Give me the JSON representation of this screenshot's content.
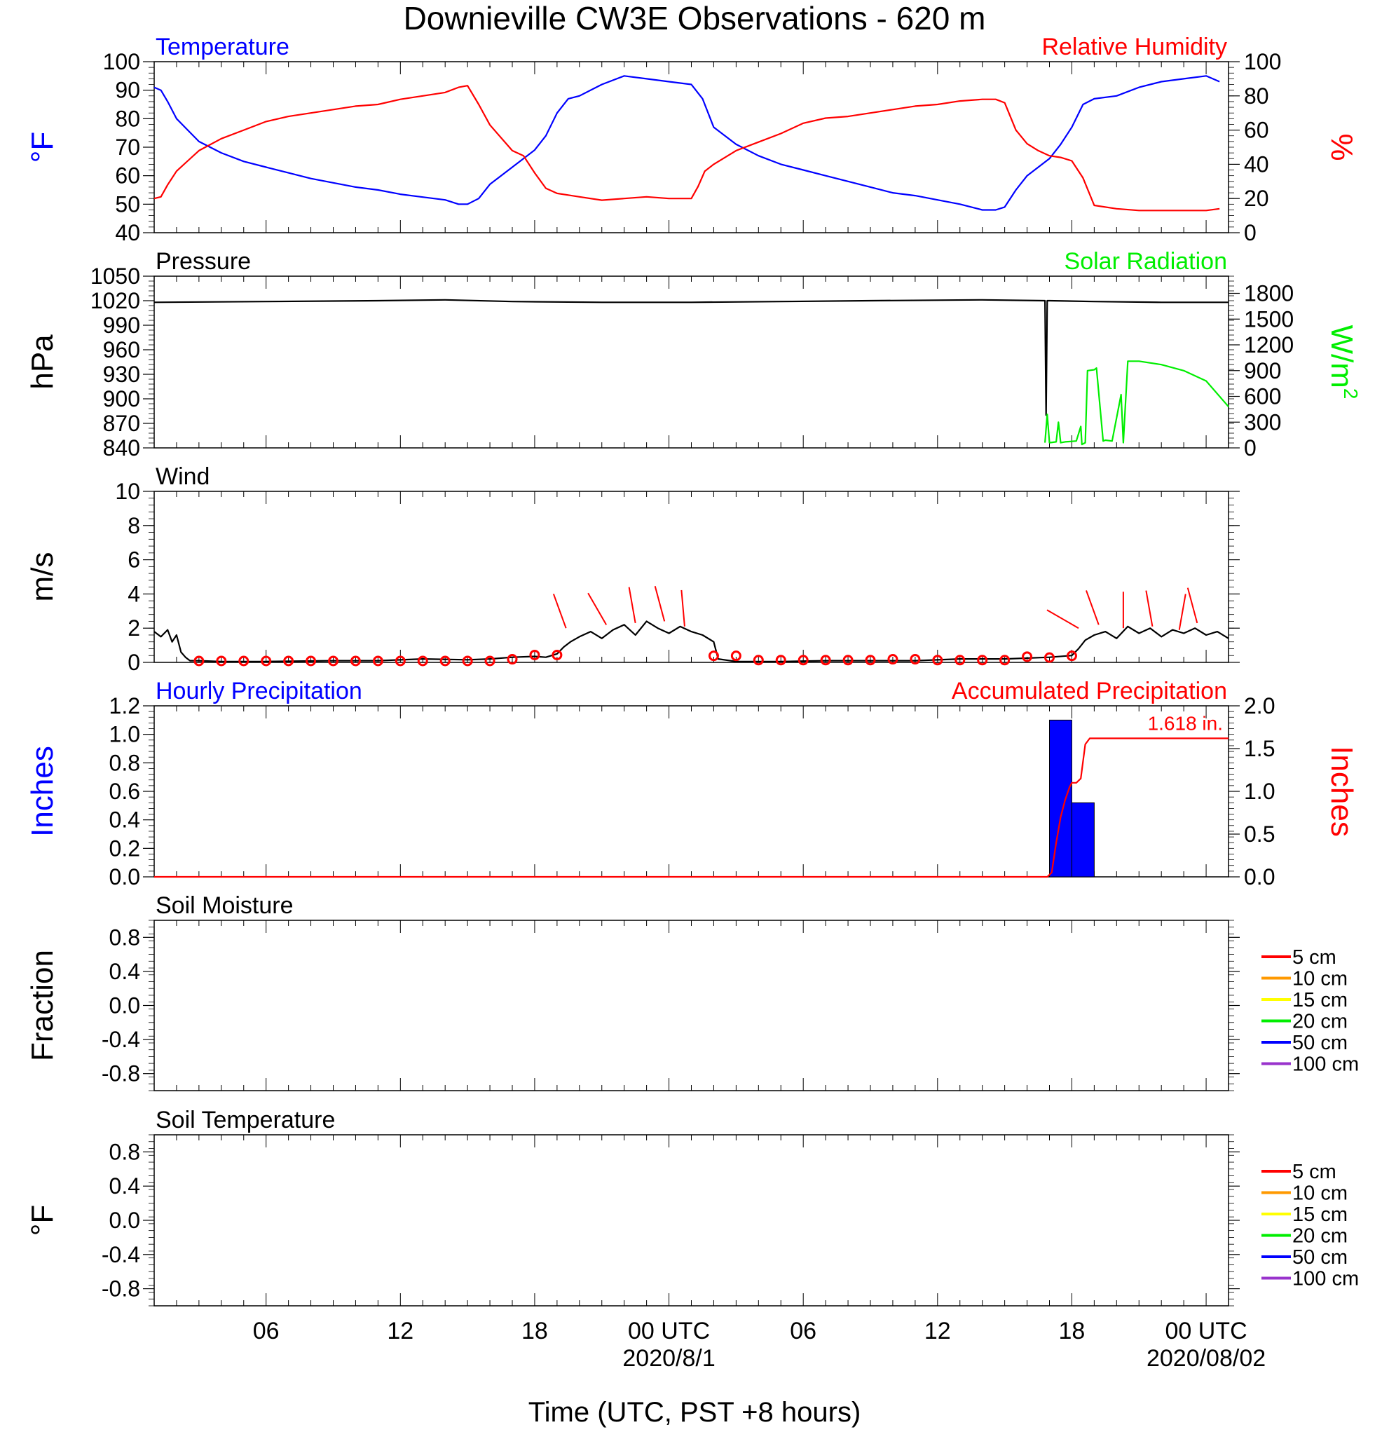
{
  "title": "Downieville CW3E Observations - 620 m",
  "colors": {
    "temperature": "#0000ff",
    "humidity": "#ff0000",
    "pressure": "#000000",
    "solar": "#00ee00",
    "wind": "#000000",
    "wind_barb": "#ff0000",
    "hourly_precip": "#0000ff",
    "accum_precip": "#ff0000",
    "soil_5cm": "#ff0000",
    "soil_10cm": "#ff9900",
    "soil_15cm": "#ffff00",
    "soil_20cm": "#00ee00",
    "soil_50cm": "#0000ff",
    "soil_100cm": "#9933cc"
  },
  "x_axis": {
    "label": "Time (UTC, PST +8 hours)",
    "range_hours": [
      0,
      48
    ],
    "ticks": [
      {
        "hour": 5,
        "label": "06"
      },
      {
        "hour": 11,
        "label": "12"
      },
      {
        "hour": 17,
        "label": "18"
      },
      {
        "hour": 23,
        "label": "00 UTC"
      },
      {
        "hour": 29,
        "label": "06"
      },
      {
        "hour": 35,
        "label": "12"
      },
      {
        "hour": 41,
        "label": "18"
      },
      {
        "hour": 47,
        "label": "00 UTC"
      }
    ],
    "dates": [
      {
        "hour": 23,
        "label": "2020/8/1"
      },
      {
        "hour": 47,
        "label": "2020/08/02"
      }
    ]
  },
  "chart_data": [
    {
      "panel": "temperature-humidity",
      "type": "line",
      "left_title": "Temperature",
      "right_title": "Relative Humidity",
      "ylabel_left": "°F",
      "ylabel_right": "%",
      "ylim_left": [
        40,
        100
      ],
      "yticks_left": [
        "40",
        "50",
        "60",
        "70",
        "80",
        "90",
        "100"
      ],
      "ylim_right": [
        0,
        100
      ],
      "yticks_right": [
        "0",
        "20",
        "40",
        "60",
        "80",
        "100"
      ],
      "series": [
        {
          "name": "Temperature",
          "axis": "left",
          "x": [
            0,
            0.3,
            0.6,
            1,
            1.5,
            2,
            3,
            4,
            5,
            6,
            7,
            8,
            9,
            10,
            11,
            12,
            13,
            13.6,
            14,
            14.5,
            15,
            16,
            17,
            17.5,
            18,
            18.5,
            19,
            20,
            21,
            22,
            23,
            24,
            24.5,
            25,
            26,
            27,
            28,
            29,
            30,
            31,
            32,
            33,
            34,
            35,
            36,
            37,
            37.6,
            38,
            38.5,
            39,
            40,
            40.5,
            41,
            41.5,
            42,
            43,
            44,
            45,
            46,
            47,
            47.6
          ],
          "values": [
            91,
            90,
            86,
            80,
            76,
            72,
            68,
            65,
            63,
            61,
            59,
            57.5,
            56,
            55,
            53.5,
            52.5,
            51.5,
            50,
            50,
            52,
            57,
            63,
            69,
            74,
            82,
            87,
            88,
            92,
            95,
            94,
            93,
            92,
            87,
            77,
            71,
            67,
            64,
            62,
            60,
            58,
            56,
            54,
            53,
            51.5,
            50,
            48,
            48,
            49,
            55,
            60,
            66,
            71,
            77,
            85,
            87,
            88,
            91,
            93,
            94,
            95,
            93
          ]
        },
        {
          "name": "Relative Humidity",
          "axis": "right",
          "x": [
            0,
            0.3,
            0.6,
            1,
            1.5,
            2,
            3,
            4,
            5,
            6,
            7,
            8,
            9,
            10,
            11,
            12,
            13,
            13.6,
            14,
            14.5,
            15,
            16,
            16.5,
            17,
            17.5,
            18,
            18.5,
            19,
            20,
            21,
            22,
            23,
            24,
            24.3,
            24.6,
            25,
            26,
            27,
            28,
            29,
            30,
            31,
            32,
            33,
            34,
            35,
            36,
            37,
            37.6,
            38,
            38.5,
            39,
            39.5,
            40,
            40.5,
            41,
            41.5,
            42,
            43,
            44,
            45,
            46,
            47,
            47.6
          ],
          "values": [
            20,
            21,
            28,
            36,
            42,
            48,
            55,
            60,
            65,
            68,
            70,
            72,
            74,
            75,
            78,
            80,
            82,
            85,
            86,
            75,
            63,
            48,
            45,
            35,
            26,
            23,
            22,
            21,
            19,
            20,
            21,
            20,
            20,
            27,
            36,
            40,
            48,
            53,
            58,
            64,
            67,
            68,
            70,
            72,
            74,
            75,
            77,
            78,
            78,
            76,
            60,
            52,
            48,
            45,
            44,
            42,
            32,
            16,
            14,
            13,
            13,
            13,
            13,
            14
          ]
        }
      ]
    },
    {
      "panel": "pressure-solar",
      "type": "line",
      "left_title": "Pressure",
      "right_title": "Solar Radiation",
      "ylabel_left": "hPa",
      "ylabel_right": "W/m",
      "ylabel_right_superscript": "2",
      "ylim_left": [
        840,
        1050
      ],
      "yticks_left": [
        "840",
        "870",
        "900",
        "930",
        "960",
        "990",
        "1020",
        "1050"
      ],
      "ylim_right": [
        0,
        2000
      ],
      "yticks_right": [
        "0",
        "300",
        "600",
        "900",
        "1200",
        "1500",
        "1800"
      ],
      "series": [
        {
          "name": "Pressure",
          "axis": "left",
          "x": [
            0,
            5,
            10,
            13,
            16,
            20,
            24,
            28,
            32,
            37,
            39.8,
            39.85,
            39.9,
            40,
            42,
            45,
            48
          ],
          "values": [
            1018,
            1019,
            1020,
            1021,
            1019,
            1018,
            1018,
            1019,
            1020,
            1021,
            1020,
            880,
            1020,
            1020,
            1019,
            1018,
            1018
          ]
        },
        {
          "name": "Solar Radiation",
          "axis": "right",
          "x": [
            39.8,
            39.9,
            40,
            40.3,
            40.4,
            40.5,
            40.7,
            41.2,
            41.4,
            41.45,
            41.6,
            41.7,
            42,
            42.1,
            42.4,
            42.5,
            42.8,
            43.2,
            43.3,
            43.5,
            44,
            45,
            46,
            47,
            48
          ],
          "values": [
            60,
            390,
            60,
            70,
            300,
            60,
            70,
            80,
            250,
            40,
            60,
            900,
            910,
            930,
            80,
            90,
            80,
            620,
            60,
            1010,
            1010,
            970,
            900,
            780,
            480
          ]
        }
      ]
    },
    {
      "panel": "wind",
      "type": "line",
      "left_title": "Wind",
      "ylabel_left": "m/s",
      "ylim_left": [
        0,
        10
      ],
      "yticks_left": [
        "0",
        "2",
        "4",
        "6",
        "8",
        "10"
      ],
      "series": [
        {
          "name": "Wind",
          "axis": "left",
          "x": [
            0,
            0.3,
            0.6,
            0.8,
            1.0,
            1.2,
            1.4,
            1.6,
            2,
            3,
            5,
            8,
            10,
            12,
            14,
            15,
            16,
            17,
            17.5,
            18,
            18.3,
            18.6,
            19,
            19.5,
            20,
            20.5,
            21,
            21.5,
            22,
            22.5,
            23,
            23.5,
            24,
            24.5,
            25,
            25.2,
            26,
            28,
            30,
            32,
            34,
            36,
            38,
            40,
            41,
            41.3,
            41.6,
            42,
            42.5,
            43,
            43.5,
            44,
            44.5,
            45,
            45.5,
            46,
            46.5,
            47,
            47.5,
            48
          ],
          "values": [
            1.8,
            1.5,
            1.9,
            1.2,
            1.6,
            0.6,
            0.3,
            0.1,
            0.1,
            0.05,
            0.05,
            0.1,
            0.1,
            0.2,
            0.15,
            0.2,
            0.3,
            0.35,
            0.3,
            0.5,
            0.9,
            1.2,
            1.5,
            1.8,
            1.4,
            1.9,
            2.2,
            1.6,
            2.4,
            2.0,
            1.7,
            2.1,
            1.8,
            1.6,
            1.2,
            0.2,
            0.05,
            0.05,
            0.1,
            0.1,
            0.1,
            0.2,
            0.2,
            0.3,
            0.4,
            0.8,
            1.3,
            1.6,
            1.8,
            1.4,
            2.1,
            1.7,
            2.0,
            1.5,
            1.9,
            1.7,
            2.0,
            1.6,
            1.8,
            1.4
          ]
        }
      ],
      "markers": {
        "name": "Wind direction",
        "x": [
          2,
          3,
          4,
          5,
          6,
          7,
          8,
          9,
          10,
          11,
          12,
          13,
          14,
          15,
          16,
          17,
          18,
          25,
          26,
          27,
          28,
          29,
          30,
          31,
          32,
          33,
          34,
          35,
          36,
          37,
          38,
          39,
          40,
          41
        ],
        "values": [
          0,
          0,
          0,
          0,
          0,
          0,
          0,
          0,
          0,
          0,
          0,
          0,
          0,
          0,
          0.1,
          0.35,
          0.35,
          0.3,
          0.3,
          0.05,
          0.05,
          0.05,
          0.05,
          0.05,
          0.05,
          0.1,
          0.1,
          0.05,
          0.05,
          0.05,
          0.05,
          0.25,
          0.2,
          0.3
        ]
      },
      "barbs": [
        {
          "x": 18.4,
          "speed": 2.0,
          "dir_deg": 340
        },
        {
          "x": 20.2,
          "speed": 2.2,
          "dir_deg": 330
        },
        {
          "x": 21.5,
          "speed": 2.3,
          "dir_deg": 350
        },
        {
          "x": 22.8,
          "speed": 2.4,
          "dir_deg": 345
        },
        {
          "x": 23.7,
          "speed": 2.1,
          "dir_deg": 355
        },
        {
          "x": 41.3,
          "speed": 2.0,
          "dir_deg": 300
        },
        {
          "x": 42.2,
          "speed": 2.2,
          "dir_deg": 340
        },
        {
          "x": 43.3,
          "speed": 2.0,
          "dir_deg": 0
        },
        {
          "x": 44.6,
          "speed": 2.1,
          "dir_deg": 350
        },
        {
          "x": 45.8,
          "speed": 1.9,
          "dir_deg": 10
        },
        {
          "x": 46.6,
          "speed": 2.3,
          "dir_deg": 345
        }
      ]
    },
    {
      "panel": "precipitation",
      "type": "bar",
      "left_title": "Hourly Precipitation",
      "right_title": "Accumulated Precipitation",
      "ylabel_left": "Inches",
      "ylabel_right": "Inches",
      "ylim_left": [
        0,
        1.2
      ],
      "yticks_left": [
        "0.0",
        "0.2",
        "0.4",
        "0.6",
        "0.8",
        "1.0",
        "1.2"
      ],
      "ylim_right": [
        0,
        2.0
      ],
      "yticks_right": [
        "0.0",
        "0.5",
        "1.0",
        "1.5",
        "2.0"
      ],
      "annotation": "1.618 in.",
      "bars": {
        "name": "Hourly Precipitation",
        "x_start": [
          40,
          41
        ],
        "x_end": [
          41,
          42
        ],
        "values": [
          1.1,
          0.52
        ]
      },
      "series": [
        {
          "name": "Accumulated Precipitation",
          "axis": "right",
          "x": [
            0,
            39.9,
            40.1,
            40.3,
            40.5,
            40.7,
            40.9,
            41,
            41.2,
            41.4,
            41.6,
            41.8,
            48
          ],
          "values": [
            0,
            0,
            0.05,
            0.4,
            0.7,
            0.9,
            1.05,
            1.1,
            1.1,
            1.15,
            1.55,
            1.62,
            1.62
          ]
        }
      ]
    },
    {
      "panel": "soil-moisture",
      "type": "line",
      "left_title": "Soil Moisture",
      "ylabel_left": "Fraction",
      "ylim_left": [
        -1,
        1
      ],
      "yticks_left": [
        "-0.8",
        "-0.4",
        "0.0",
        "0.4",
        "0.8"
      ],
      "legend": [
        "5 cm",
        "10 cm",
        "15 cm",
        "20 cm",
        "50 cm",
        "100 cm"
      ],
      "series": []
    },
    {
      "panel": "soil-temperature",
      "type": "line",
      "left_title": "Soil Temperature",
      "ylabel_left": "°F",
      "ylim_left": [
        -1,
        1
      ],
      "yticks_left": [
        "-0.8",
        "-0.4",
        "0.0",
        "0.4",
        "0.8"
      ],
      "legend": [
        "5 cm",
        "10 cm",
        "15 cm",
        "20 cm",
        "50 cm",
        "100 cm"
      ],
      "series": []
    }
  ]
}
